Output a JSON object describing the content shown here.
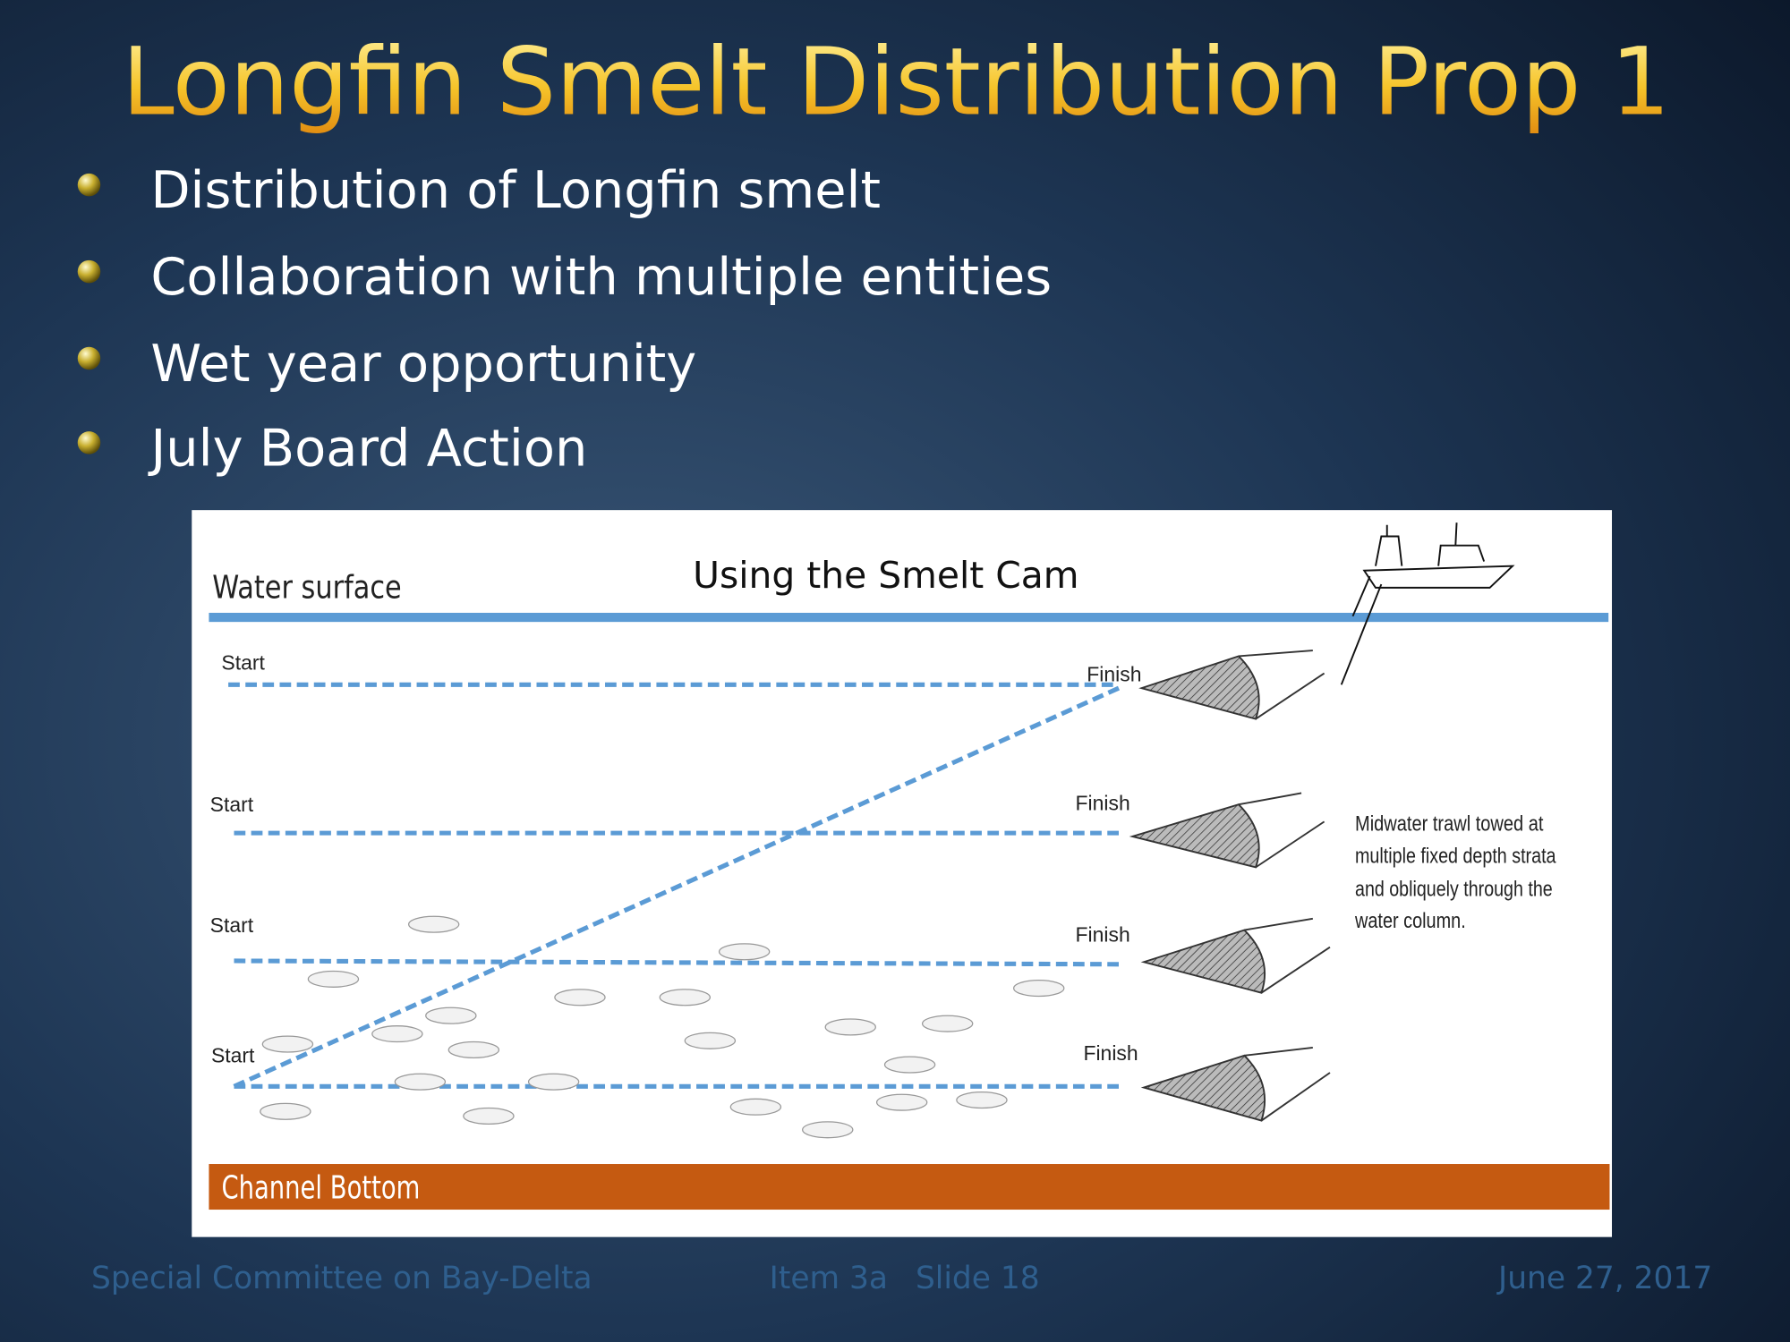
{
  "slide": {
    "title": "Longfin Smelt Distribution Prop 1",
    "bullets": [
      "Distribution of Longfin smelt",
      "Collaboration with multiple entities",
      "Wet year opportunity",
      "July Board Action"
    ],
    "diagram": {
      "title": "Using the Smelt Cam",
      "surface_label": "Water surface",
      "bottom_label": "Channel Bottom",
      "rows": [
        {
          "start": "Start",
          "finish": "Finish"
        },
        {
          "start": "Start",
          "finish": "Finish"
        },
        {
          "start": "Start",
          "finish": "Finish"
        },
        {
          "start": "Start",
          "finish": "Finish"
        }
      ],
      "caption_lines": [
        "Midwater trawl towed at",
        "multiple fixed depth strata",
        "and obliquely through the",
        "water column."
      ]
    },
    "footer": {
      "left": "Special Committee on Bay-Delta",
      "item": "Item 3a",
      "slide": "Slide 18",
      "date": "June 27, 2017"
    }
  }
}
